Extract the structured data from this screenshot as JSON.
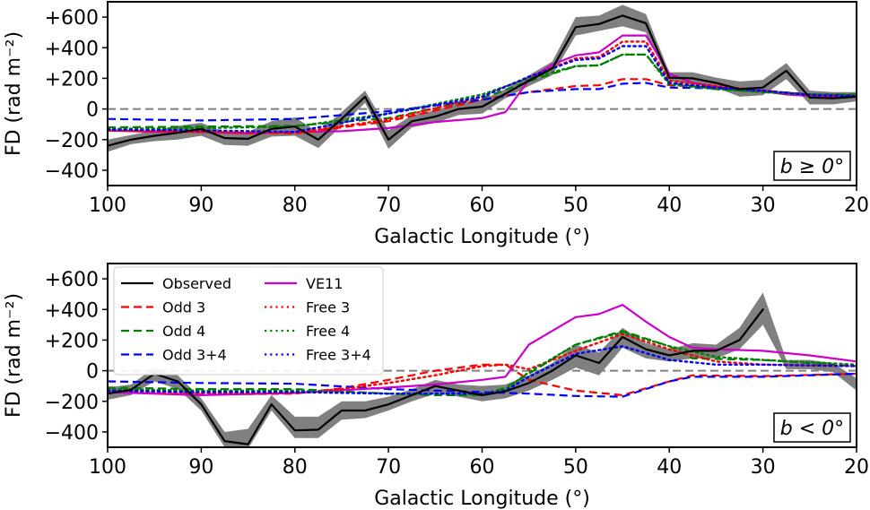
{
  "chart_data": [
    {
      "type": "line",
      "panel": "top",
      "annotation": "b ≥ 0°",
      "xlabel": "Galactic Longitude (°)",
      "ylabel": "FD (rad m⁻²)",
      "xlim": [
        100,
        20
      ],
      "ylim": [
        -500,
        700
      ],
      "xticks": [
        100,
        90,
        80,
        70,
        60,
        50,
        40,
        30,
        20
      ],
      "yticks": [
        -400,
        -200,
        0,
        200,
        400,
        600
      ],
      "ytick_labels": [
        "−400",
        "−200",
        "0",
        "+200",
        "+400",
        "+600"
      ],
      "zero_line": true,
      "legend": "none",
      "band": {
        "name": "Observed uncertainty",
        "color": "#808080",
        "x": [
          100,
          97.5,
          95,
          92.5,
          90,
          87.5,
          85,
          82.5,
          80,
          77.5,
          75,
          72.5,
          70,
          67.5,
          65,
          62.5,
          60,
          57.5,
          55,
          52.5,
          50,
          47.5,
          45,
          42.5,
          40,
          37.5,
          35,
          32.5,
          30,
          27.5,
          25,
          22.5,
          20
        ],
        "lower": [
          -280,
          -230,
          -210,
          -200,
          -175,
          -235,
          -240,
          -180,
          -175,
          -255,
          -110,
          40,
          -260,
          -120,
          -90,
          -40,
          -30,
          70,
          150,
          220,
          480,
          510,
          540,
          500,
          180,
          160,
          140,
          80,
          90,
          195,
          30,
          30,
          50
        ],
        "upper": [
          -200,
          -170,
          -140,
          -110,
          -90,
          -150,
          -150,
          -80,
          -55,
          -150,
          -20,
          120,
          -140,
          -40,
          -10,
          40,
          60,
          130,
          220,
          310,
          600,
          610,
          680,
          620,
          240,
          240,
          205,
          180,
          190,
          300,
          120,
          110,
          110
        ]
      },
      "series": [
        {
          "name": "Observed",
          "color": "#000000",
          "dash": "solid",
          "width": 2.2,
          "x": [
            100,
            97.5,
            95,
            92.5,
            90,
            87.5,
            85,
            82.5,
            80,
            77.5,
            75,
            72.5,
            70,
            67.5,
            65,
            62.5,
            60,
            57.5,
            55,
            52.5,
            50,
            47.5,
            45,
            42.5,
            40,
            37.5,
            35,
            32.5,
            30,
            27.5,
            25,
            22.5,
            20
          ],
          "y": [
            -240,
            -200,
            -175,
            -155,
            -130,
            -190,
            -195,
            -130,
            -115,
            -200,
            -65,
            80,
            -200,
            -80,
            -50,
            0,
            15,
            100,
            185,
            265,
            535,
            555,
            610,
            560,
            205,
            200,
            170,
            130,
            140,
            250,
            75,
            70,
            80
          ]
        },
        {
          "name": "VE11",
          "color": "#cc00cc",
          "dash": "solid",
          "width": 2.2,
          "x": [
            100,
            95,
            90,
            85,
            80,
            75,
            70,
            65,
            60,
            57.5,
            55,
            52.5,
            50,
            47.5,
            45,
            42.5,
            40,
            37.5,
            35,
            32.5,
            30,
            27.5,
            25,
            22.5,
            20
          ],
          "y": [
            -140,
            -150,
            -150,
            -160,
            -150,
            -145,
            -125,
            -85,
            -60,
            -20,
            190,
            290,
            350,
            370,
            480,
            480,
            230,
            170,
            145,
            120,
            115,
            95,
            85,
            80,
            80
          ]
        },
        {
          "name": "Odd 3",
          "color": "#ff0000",
          "dash": "dashed",
          "width": 2.2,
          "x": [
            100,
            90,
            80,
            70,
            60,
            55,
            50,
            47.5,
            45,
            42.5,
            40,
            35,
            30,
            25,
            20
          ],
          "y": [
            -140,
            -150,
            -160,
            -80,
            60,
            110,
            150,
            155,
            195,
            195,
            155,
            140,
            120,
            95,
            90
          ]
        },
        {
          "name": "Odd 4",
          "color": "#008000",
          "dash": "dashed",
          "width": 2.2,
          "x": [
            100,
            90,
            80,
            70,
            60,
            55,
            50,
            47.5,
            45,
            42.5,
            40,
            35,
            30,
            25,
            20
          ],
          "y": [
            -120,
            -115,
            -110,
            -60,
            70,
            180,
            280,
            285,
            355,
            355,
            170,
            130,
            110,
            95,
            95
          ]
        },
        {
          "name": "Odd 3+4",
          "color": "#0000ff",
          "dash": "dashed",
          "width": 2.2,
          "x": [
            100,
            90,
            80,
            70,
            60,
            55,
            50,
            47.5,
            45,
            42.5,
            40,
            35,
            30,
            25,
            20
          ],
          "y": [
            -65,
            -75,
            -65,
            -15,
            60,
            110,
            130,
            130,
            165,
            170,
            140,
            135,
            120,
            95,
            90
          ]
        },
        {
          "name": "Free 3",
          "color": "#ff0000",
          "dash": "dotted",
          "width": 2.4,
          "x": [
            100,
            90,
            80,
            70,
            60,
            55,
            50,
            47.5,
            45,
            42.5,
            40,
            35,
            30,
            25,
            20
          ],
          "y": [
            -140,
            -150,
            -155,
            -70,
            80,
            210,
            330,
            340,
            440,
            440,
            185,
            150,
            120,
            90,
            85
          ]
        },
        {
          "name": "Free 4",
          "color": "#008000",
          "dash": "dotted",
          "width": 2.4,
          "x": [
            100,
            90,
            80,
            70,
            60,
            55,
            50,
            47.5,
            45,
            42.5,
            40,
            35,
            30,
            25,
            20
          ],
          "y": [
            -130,
            -125,
            -115,
            -30,
            95,
            200,
            280,
            285,
            355,
            355,
            160,
            130,
            110,
            95,
            90
          ]
        },
        {
          "name": "Free 3+4",
          "color": "#0000ff",
          "dash": "dotted",
          "width": 2.4,
          "x": [
            100,
            90,
            80,
            70,
            60,
            55,
            50,
            47.5,
            45,
            42.5,
            40,
            35,
            30,
            25,
            20
          ],
          "y": [
            -135,
            -140,
            -150,
            -30,
            80,
            210,
            320,
            330,
            410,
            410,
            170,
            140,
            120,
            90,
            85
          ]
        }
      ]
    },
    {
      "type": "line",
      "panel": "bottom",
      "annotation": "b < 0°",
      "xlabel": "Galactic Longitude (°)",
      "ylabel": "FD (rad m⁻²)",
      "xlim": [
        100,
        20
      ],
      "ylim": [
        -500,
        700
      ],
      "xticks": [
        100,
        90,
        80,
        70,
        60,
        50,
        40,
        30,
        20
      ],
      "yticks": [
        -400,
        -200,
        0,
        200,
        400,
        600
      ],
      "ytick_labels": [
        "−400",
        "−200",
        "0",
        "+200",
        "+400",
        "+600"
      ],
      "zero_line": true,
      "legend": "top-left",
      "band": {
        "name": "Observed uncertainty",
        "color": "#808080",
        "x": [
          100,
          97.5,
          95,
          92.5,
          90,
          87.5,
          85,
          82.5,
          80,
          77.5,
          75,
          72.5,
          70,
          67.5,
          65,
          62.5,
          60,
          57.5,
          55,
          52.5,
          50,
          47.5,
          45,
          42.5,
          40,
          37.5,
          35,
          32.5,
          30,
          27.5,
          25,
          22.5,
          20
        ],
        "lower": [
          -190,
          -160,
          -70,
          -120,
          -260,
          -500,
          -510,
          -260,
          -440,
          -440,
          -320,
          -310,
          -260,
          -200,
          -150,
          -170,
          -200,
          -180,
          -130,
          -60,
          20,
          -30,
          150,
          80,
          60,
          80,
          80,
          140,
          300,
          10,
          10,
          -10,
          -130
        ],
        "upper": [
          -110,
          -90,
          20,
          -30,
          -180,
          -400,
          -380,
          -160,
          -300,
          -300,
          -200,
          -200,
          -170,
          -120,
          -60,
          -90,
          -100,
          -90,
          -30,
          50,
          170,
          120,
          280,
          180,
          140,
          180,
          170,
          280,
          510,
          70,
          70,
          50,
          -50
        ]
      },
      "series": [
        {
          "name": "Observed",
          "color": "#000000",
          "dash": "solid",
          "width": 2.2,
          "x": [
            100,
            97.5,
            95,
            92.5,
            90,
            87.5,
            85,
            82.5,
            80,
            77.5,
            75,
            72.5,
            70,
            67.5,
            65,
            62.5,
            60,
            57.5,
            55,
            52.5,
            50,
            47.5,
            45,
            42.5,
            40,
            37.5,
            35,
            32.5,
            30
          ],
          "y": [
            -150,
            -125,
            -20,
            -70,
            -220,
            -460,
            -480,
            -220,
            -390,
            -385,
            -260,
            -260,
            -220,
            -160,
            -100,
            -130,
            -160,
            -135,
            -80,
            0,
            100,
            50,
            220,
            140,
            100,
            130,
            130,
            200,
            400
          ]
        },
        {
          "name": "Odd 3",
          "color": "#ff0000",
          "dash": "dashed",
          "width": 2.2,
          "x": [
            100,
            90,
            80,
            75,
            70,
            65,
            60,
            57.5,
            55,
            50,
            45,
            40,
            37.5,
            30,
            20
          ],
          "y": [
            -140,
            -155,
            -150,
            -115,
            -60,
            0,
            40,
            40,
            -60,
            -130,
            -160,
            -70,
            -30,
            -35,
            -20
          ]
        },
        {
          "name": "Odd 4",
          "color": "#008000",
          "dash": "dashed",
          "width": 2.2,
          "x": [
            100,
            90,
            80,
            70,
            65,
            60,
            57.5,
            55,
            50,
            45,
            40,
            37.5,
            30,
            20
          ],
          "y": [
            -110,
            -120,
            -120,
            -150,
            -160,
            -160,
            -110,
            -20,
            170,
            260,
            160,
            80,
            70,
            30
          ]
        },
        {
          "name": "Odd 3+4",
          "color": "#0000ff",
          "dash": "dashed",
          "width": 2.2,
          "x": [
            100,
            90,
            80,
            70,
            60,
            55,
            50,
            45,
            40,
            37.5,
            30,
            20
          ],
          "y": [
            -70,
            -80,
            -85,
            -120,
            -140,
            -150,
            -165,
            -170,
            -70,
            -40,
            -40,
            -20
          ]
        },
        {
          "name": "VE11",
          "color": "#cc00cc",
          "dash": "solid",
          "width": 2.2,
          "x": [
            100,
            90,
            80,
            70,
            65,
            60,
            57.5,
            55,
            50,
            47.5,
            45,
            42.5,
            40,
            37.5,
            35,
            30,
            25,
            20
          ],
          "y": [
            -140,
            -160,
            -145,
            -110,
            -90,
            -60,
            -40,
            170,
            350,
            370,
            430,
            320,
            220,
            150,
            140,
            130,
            100,
            60
          ]
        },
        {
          "name": "Free 3",
          "color": "#ff0000",
          "dash": "dotted",
          "width": 2.4,
          "x": [
            100,
            90,
            80,
            75,
            70,
            65,
            60,
            57.5,
            55,
            50,
            45,
            40,
            35,
            30,
            20
          ],
          "y": [
            -130,
            -145,
            -145,
            -120,
            -80,
            -30,
            30,
            40,
            10,
            130,
            240,
            140,
            60,
            40,
            30
          ]
        },
        {
          "name": "Free 4",
          "color": "#008000",
          "dash": "dotted",
          "width": 2.4,
          "x": [
            100,
            90,
            80,
            70,
            60,
            57.5,
            55,
            50,
            45,
            40,
            35,
            30,
            20
          ],
          "y": [
            -120,
            -130,
            -130,
            -150,
            -150,
            -120,
            -10,
            170,
            250,
            160,
            90,
            70,
            40
          ]
        },
        {
          "name": "Free 3+4",
          "color": "#0000ff",
          "dash": "dotted",
          "width": 2.4,
          "x": [
            100,
            90,
            80,
            70,
            60,
            57.5,
            55,
            50,
            45,
            40,
            35,
            30,
            20
          ],
          "y": [
            -130,
            -140,
            -140,
            -150,
            -150,
            -130,
            -40,
            110,
            160,
            70,
            40,
            40,
            30
          ]
        }
      ],
      "legend_entries": [
        {
          "name": "Observed",
          "color": "#000000",
          "dash": "solid"
        },
        {
          "name": "Odd 3",
          "color": "#ff0000",
          "dash": "dashed"
        },
        {
          "name": "Odd 4",
          "color": "#008000",
          "dash": "dashed"
        },
        {
          "name": "Odd 3+4",
          "color": "#0000ff",
          "dash": "dashed"
        },
        {
          "name": "VE11",
          "color": "#cc00cc",
          "dash": "solid"
        },
        {
          "name": "Free 3",
          "color": "#ff0000",
          "dash": "dotted"
        },
        {
          "name": "Free 4",
          "color": "#008000",
          "dash": "dotted"
        },
        {
          "name": "Free 3+4",
          "color": "#0000ff",
          "dash": "dotted"
        }
      ]
    }
  ]
}
